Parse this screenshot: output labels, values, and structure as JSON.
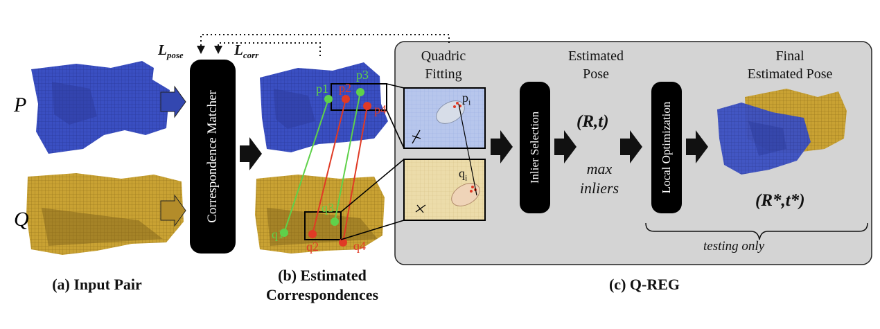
{
  "input": {
    "p_label": "P",
    "q_label": "Q",
    "caption": "(a) Input Pair"
  },
  "matcher": {
    "label": "Correspondence Matcher",
    "loss_pose": "L",
    "loss_pose_sub": "pose",
    "loss_corr": "L",
    "loss_corr_sub": "corr"
  },
  "correspondences": {
    "caption_line1": "(b) Estimated",
    "caption_line2": "Correspondences",
    "p_points": [
      "p1",
      "p2",
      "p3",
      "p4"
    ],
    "q_points": [
      "q1",
      "q2",
      "q3",
      "q4"
    ]
  },
  "qreg": {
    "caption": "(c) Q-REG",
    "quadric_fitting": [
      "Quadric",
      "Fitting"
    ],
    "estimated_pose": [
      "Estimated",
      "Pose"
    ],
    "final_pose": [
      "Final",
      "Estimated Pose"
    ],
    "inlier_selection": "Inlier Selection",
    "local_optimization": "Local Optimization",
    "pose": "(R,t)",
    "max_inliers": [
      "max",
      "inliers"
    ],
    "final_result": "(R*,t*)",
    "testing_only": "testing only",
    "pi_label": "p",
    "pi_sub": "i",
    "qi_label": "q",
    "qi_sub": "i"
  },
  "colors": {
    "blue": "#3a4fc2",
    "gold": "#c9a233",
    "green": "#5fd14a",
    "red": "#e03a25",
    "panel": "#d4d4d4"
  }
}
